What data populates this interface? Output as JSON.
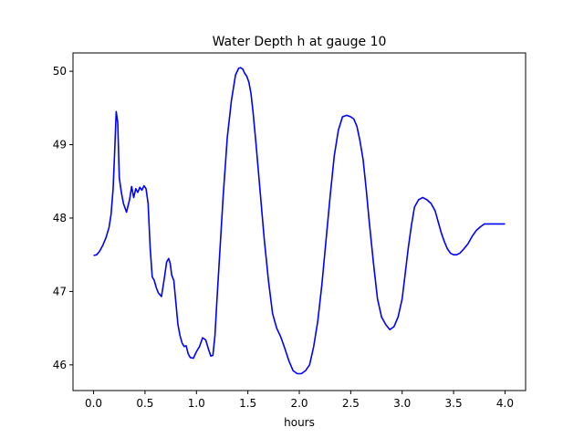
{
  "chart_data": {
    "type": "line",
    "title": "Water Depth h at gauge 10",
    "xlabel": "hours",
    "ylabel": "",
    "xlim": [
      -0.2,
      4.2
    ],
    "ylim": [
      45.65,
      50.25
    ],
    "xticks": [
      0.0,
      0.5,
      1.0,
      1.5,
      2.0,
      2.5,
      3.0,
      3.5,
      4.0
    ],
    "xtick_labels": [
      "0.0",
      "0.5",
      "1.0",
      "1.5",
      "2.0",
      "2.5",
      "3.0",
      "3.5",
      "4.0"
    ],
    "yticks": [
      46,
      47,
      48,
      49,
      50
    ],
    "ytick_labels": [
      "46",
      "47",
      "48",
      "49",
      "50"
    ],
    "grid": false,
    "series": [
      {
        "color": "#0000ff",
        "x": [
          0.0,
          0.03,
          0.06,
          0.09,
          0.12,
          0.15,
          0.17,
          0.19,
          0.205,
          0.22,
          0.235,
          0.25,
          0.27,
          0.29,
          0.32,
          0.35,
          0.37,
          0.39,
          0.41,
          0.43,
          0.45,
          0.47,
          0.49,
          0.51,
          0.53,
          0.55,
          0.57,
          0.59,
          0.61,
          0.63,
          0.66,
          0.69,
          0.71,
          0.73,
          0.745,
          0.76,
          0.78,
          0.8,
          0.82,
          0.84,
          0.86,
          0.88,
          0.9,
          0.92,
          0.94,
          0.97,
          1.0,
          1.03,
          1.06,
          1.09,
          1.12,
          1.14,
          1.16,
          1.18,
          1.2,
          1.23,
          1.26,
          1.3,
          1.34,
          1.38,
          1.41,
          1.43,
          1.45,
          1.47,
          1.49,
          1.51,
          1.53,
          1.55,
          1.58,
          1.62,
          1.66,
          1.7,
          1.74,
          1.78,
          1.82,
          1.86,
          1.9,
          1.94,
          1.98,
          2.02,
          2.06,
          2.1,
          2.14,
          2.18,
          2.22,
          2.26,
          2.3,
          2.34,
          2.38,
          2.42,
          2.46,
          2.5,
          2.53,
          2.56,
          2.59,
          2.62,
          2.65,
          2.68,
          2.72,
          2.76,
          2.8,
          2.84,
          2.88,
          2.92,
          2.96,
          3.0,
          3.03,
          3.06,
          3.09,
          3.12,
          3.16,
          3.2,
          3.24,
          3.28,
          3.32,
          3.35,
          3.38,
          3.41,
          3.44,
          3.47,
          3.5,
          3.53,
          3.56,
          3.6,
          3.64,
          3.68,
          3.72,
          3.76,
          3.8,
          3.84,
          3.88,
          3.92,
          3.96,
          4.0
        ],
        "y": [
          47.49,
          47.5,
          47.55,
          47.63,
          47.73,
          47.87,
          48.05,
          48.4,
          48.9,
          49.45,
          49.3,
          48.55,
          48.35,
          48.2,
          48.08,
          48.25,
          48.43,
          48.28,
          48.4,
          48.35,
          48.42,
          48.38,
          48.44,
          48.4,
          48.2,
          47.6,
          47.2,
          47.15,
          47.05,
          46.98,
          46.93,
          47.2,
          47.4,
          47.45,
          47.38,
          47.22,
          47.15,
          46.85,
          46.55,
          46.4,
          46.3,
          46.25,
          46.26,
          46.15,
          46.1,
          46.09,
          46.18,
          46.25,
          46.37,
          46.34,
          46.2,
          46.12,
          46.13,
          46.4,
          46.9,
          47.6,
          48.3,
          49.1,
          49.6,
          49.95,
          50.04,
          50.05,
          50.03,
          49.97,
          49.93,
          49.85,
          49.7,
          49.45,
          49.0,
          48.35,
          47.7,
          47.15,
          46.7,
          46.5,
          46.38,
          46.22,
          46.05,
          45.92,
          45.88,
          45.88,
          45.92,
          46.0,
          46.25,
          46.6,
          47.1,
          47.7,
          48.3,
          48.85,
          49.2,
          49.38,
          49.4,
          49.38,
          49.35,
          49.25,
          49.05,
          48.8,
          48.4,
          47.95,
          47.4,
          46.9,
          46.65,
          46.55,
          46.48,
          46.52,
          46.65,
          46.9,
          47.25,
          47.6,
          47.9,
          48.15,
          48.25,
          48.28,
          48.25,
          48.2,
          48.1,
          47.95,
          47.8,
          47.68,
          47.58,
          47.52,
          47.5,
          47.5,
          47.52,
          47.58,
          47.65,
          47.75,
          47.83,
          47.88,
          47.92,
          47.92,
          47.92,
          47.92,
          47.92,
          47.92
        ]
      }
    ]
  }
}
